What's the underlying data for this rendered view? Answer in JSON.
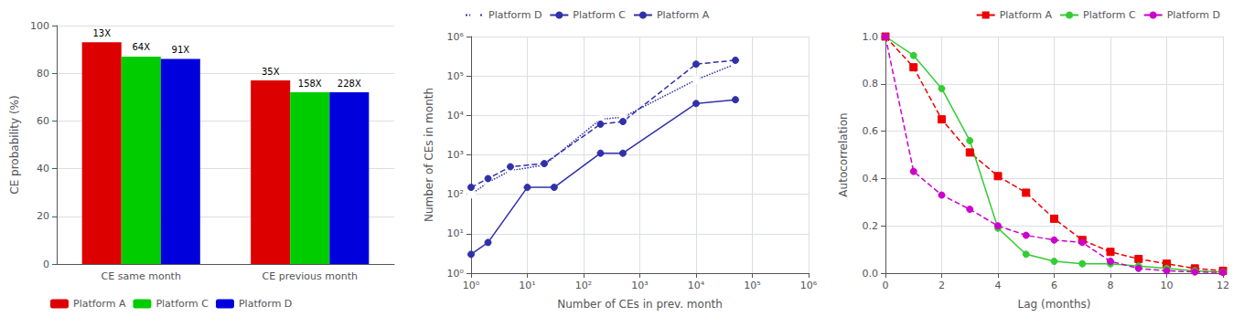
{
  "chart_data": [
    {
      "type": "bar",
      "categories": [
        "CE same month",
        "CE previous month"
      ],
      "series": [
        {
          "name": "Platform A",
          "color": "#dd0000",
          "values": [
            93,
            77
          ],
          "value_labels": [
            "13X",
            "35X"
          ]
        },
        {
          "name": "Platform C",
          "color": "#00cc00",
          "values": [
            87,
            72
          ],
          "value_labels": [
            "64X",
            "158X"
          ]
        },
        {
          "name": "Platform D",
          "color": "#0000dd",
          "values": [
            86,
            72
          ],
          "value_labels": [
            "91X",
            "228X"
          ]
        }
      ],
      "ylabel": "CE probability (%)",
      "ylim": [
        0,
        100
      ],
      "yticks": [
        0,
        20,
        40,
        60,
        80,
        100
      ],
      "data_labels": true,
      "grid": true,
      "legend": "lower left"
    },
    {
      "type": "line",
      "log": true,
      "series": [
        {
          "name": "Platform D",
          "color": "#3030aa",
          "line_style": "dotted",
          "marker": "open circle",
          "x": [
            1,
            2,
            5,
            20,
            200,
            500,
            10000,
            50000
          ],
          "values": [
            100,
            200,
            400,
            550,
            8000,
            9000,
            80000,
            200000
          ]
        },
        {
          "name": "Platform C",
          "color": "#3030aa",
          "line_style": "dashed",
          "marker": "circle",
          "x": [
            1,
            2,
            5,
            20,
            200,
            500,
            10000,
            50000
          ],
          "values": [
            150,
            250,
            500,
            600,
            6000,
            7000,
            200000,
            250000
          ]
        },
        {
          "name": "Platform A",
          "color": "#3030aa",
          "line_style": "solid",
          "marker": "circle",
          "x": [
            1,
            2,
            10,
            30,
            200,
            500,
            10000,
            50000
          ],
          "values": [
            3,
            6,
            150,
            150,
            1100,
            1100,
            20000,
            25000
          ]
        }
      ],
      "xlabel": "Number of CEs in prev. month",
      "ylabel": "Number of CEs in month",
      "xlim": [
        1,
        1000000
      ],
      "xticks": [
        {
          "value": 1,
          "label": "10⁰"
        },
        {
          "value": 10,
          "label": "10¹"
        },
        {
          "value": 100,
          "label": "10²"
        },
        {
          "value": 1000,
          "label": "10³"
        },
        {
          "value": 10000,
          "label": "10⁴"
        },
        {
          "value": 100000,
          "label": "10⁵"
        },
        {
          "value": 1000000,
          "label": "10⁶"
        }
      ],
      "ylim": [
        1,
        1000000
      ],
      "yticks": [
        {
          "value": 1,
          "label": "10⁰"
        },
        {
          "value": 10,
          "label": "10¹"
        },
        {
          "value": 100,
          "label": "10²"
        },
        {
          "value": 1000,
          "label": "10³"
        },
        {
          "value": 10000,
          "label": "10⁴"
        },
        {
          "value": 100000,
          "label": "10⁵"
        },
        {
          "value": 1000000,
          "label": "10⁶"
        }
      ],
      "grid": true,
      "legend": "upper left"
    },
    {
      "type": "line",
      "x": [
        0,
        1,
        2,
        3,
        4,
        5,
        6,
        7,
        8,
        9,
        10,
        11,
        12
      ],
      "series": [
        {
          "name": "Platform A",
          "color": "#ee0000",
          "line_style": "dashed",
          "marker": "square",
          "values": [
            1.0,
            0.87,
            0.65,
            0.51,
            0.41,
            0.34,
            0.23,
            0.14,
            0.09,
            0.06,
            0.04,
            0.02,
            0.01
          ]
        },
        {
          "name": "Platform C",
          "color": "#33cc33",
          "line_style": "solid",
          "marker": "circle",
          "values": [
            1.0,
            0.92,
            0.78,
            0.56,
            0.19,
            0.08,
            0.05,
            0.04,
            0.04,
            0.03,
            0.02,
            0.01,
            0.005
          ]
        },
        {
          "name": "Platform D",
          "color": "#cc00cc",
          "line_style": "dashed",
          "marker": "circle",
          "values": [
            1.0,
            0.43,
            0.33,
            0.27,
            0.2,
            0.16,
            0.14,
            0.13,
            0.05,
            0.02,
            0.01,
            0.005,
            0.003
          ]
        }
      ],
      "xlabel": "Lag (months)",
      "ylabel": "Autocorrelation",
      "xlim": [
        0,
        12
      ],
      "xticks": [
        0,
        2,
        4,
        6,
        8,
        10,
        12
      ],
      "ylim": [
        0,
        1
      ],
      "yticks": [
        {
          "value": 0,
          "label": "0.0"
        },
        0.2,
        0.4,
        0.6,
        0.8,
        {
          "value": 1.0,
          "label": "1.0"
        }
      ],
      "grid": true,
      "legend": "upper right"
    }
  ]
}
